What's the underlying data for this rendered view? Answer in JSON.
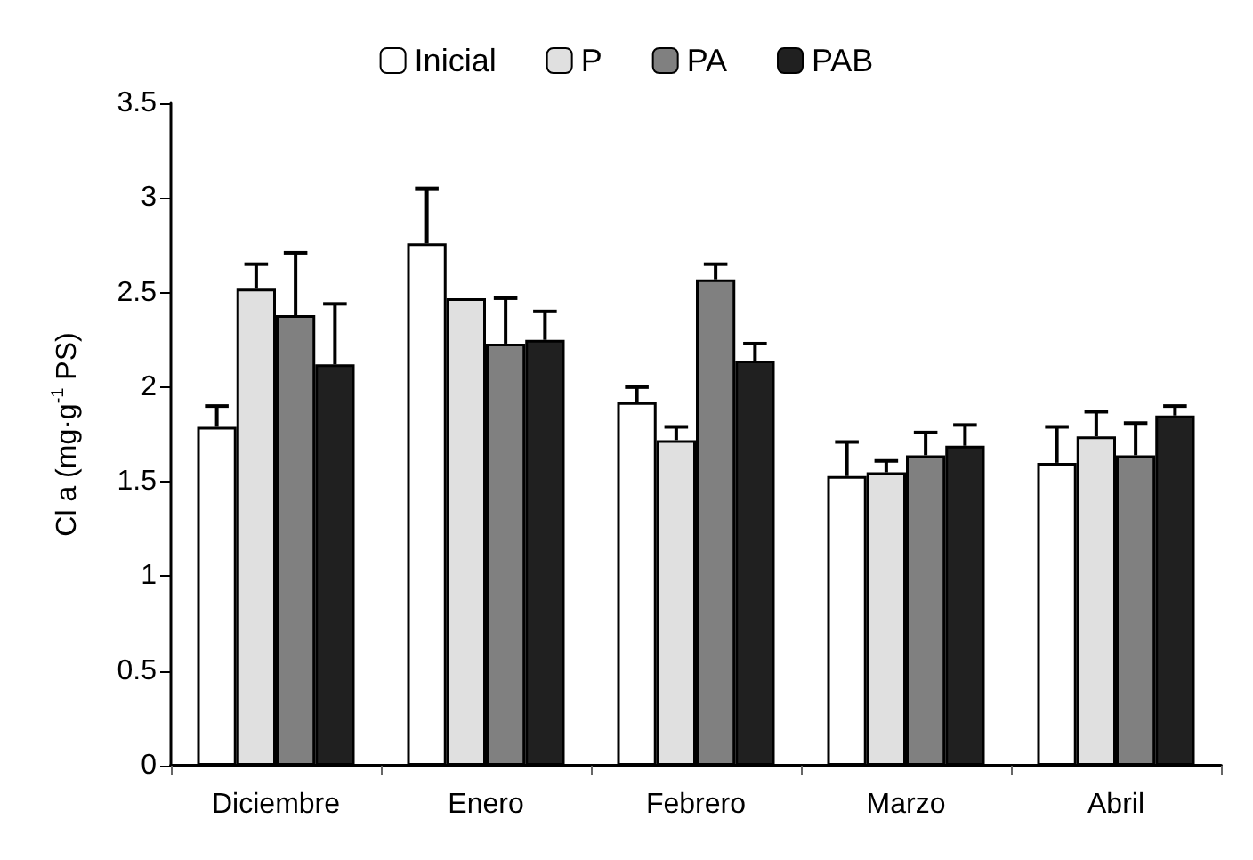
{
  "chart_data": {
    "type": "bar",
    "ylabel": "Cl a (mg·g$^{-1}$ PS)",
    "categories": [
      "Diciembre",
      "Enero",
      "Febrero",
      "Marzo",
      "Abril"
    ],
    "series": [
      {
        "name": "Inicial",
        "color": "#ffffff",
        "values": [
          1.79,
          2.76,
          1.92,
          1.53,
          1.6
        ],
        "errors": [
          0.11,
          0.29,
          0.08,
          0.18,
          0.19
        ]
      },
      {
        "name": "P",
        "color": "#e0e0e0",
        "values": [
          2.52,
          2.47,
          1.72,
          1.55,
          1.74
        ],
        "errors": [
          0.13,
          null,
          0.07,
          0.06,
          0.13
        ]
      },
      {
        "name": "PA",
        "color": "#808080",
        "values": [
          2.38,
          2.23,
          2.57,
          1.64,
          1.64
        ],
        "errors": [
          0.33,
          0.24,
          0.08,
          0.12,
          0.17
        ]
      },
      {
        "name": "PAB",
        "color": "#202020",
        "values": [
          2.12,
          2.25,
          2.14,
          1.69,
          1.85
        ],
        "errors": [
          0.32,
          0.15,
          0.09,
          0.11,
          0.05
        ]
      }
    ],
    "ylim": [
      0,
      3.5
    ],
    "yticks": [
      0,
      0.5,
      1,
      1.5,
      2,
      2.5,
      3,
      3.5
    ],
    "grid": false,
    "legend": "top"
  }
}
